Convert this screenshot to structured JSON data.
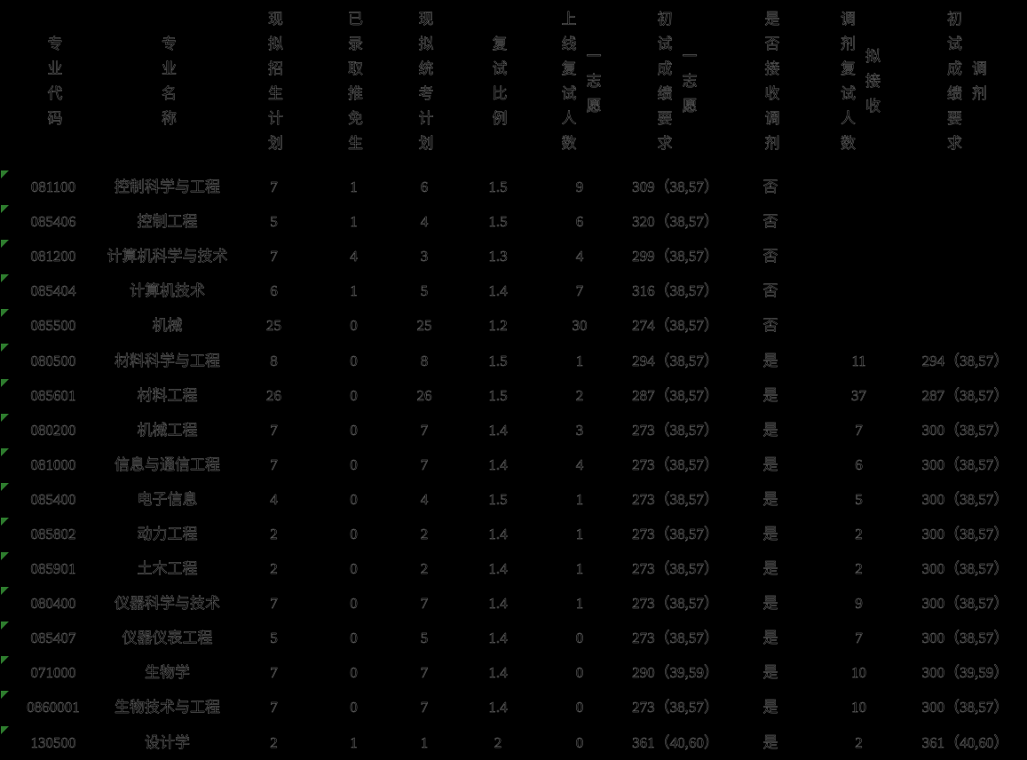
{
  "colors": {
    "background": "#000000",
    "text": "#000000",
    "flag_green": "#2e7d2e"
  },
  "table": {
    "columns": [
      {
        "id": "code",
        "label": "专业代码",
        "sub": ""
      },
      {
        "id": "name",
        "label": "专业名称",
        "sub": ""
      },
      {
        "id": "plan",
        "label": "现拟招生计划",
        "sub": ""
      },
      {
        "id": "tuimian",
        "label": "已录取推免生",
        "sub": ""
      },
      {
        "id": "tongkao",
        "label": "现拟统考计划",
        "sub": ""
      },
      {
        "id": "ratio",
        "label": "复试比例",
        "sub": ""
      },
      {
        "id": "first_online",
        "label": "上线复试人数",
        "sub": "一志愿"
      },
      {
        "id": "first_score",
        "label": "初试成绩要求",
        "sub": "一志愿"
      },
      {
        "id": "accept",
        "label": "是否接收调剂",
        "sub": ""
      },
      {
        "id": "tiaoji_num",
        "label": "调剂复试人数",
        "sub": "拟接收"
      },
      {
        "id": "tiaoji_score",
        "label": "初试成绩要求",
        "sub": "调剂"
      }
    ],
    "rows": [
      {
        "code": "081100",
        "name": "控制科学与工程",
        "plan": "7",
        "tuimian": "1",
        "tongkao": "6",
        "ratio": "1.5",
        "first_online": "9",
        "first_score": "309（38,57）",
        "accept": "否",
        "tiaoji_num": "",
        "tiaoji_score": ""
      },
      {
        "code": "085406",
        "name": "控制工程",
        "plan": "5",
        "tuimian": "1",
        "tongkao": "4",
        "ratio": "1.5",
        "first_online": "6",
        "first_score": "320（38,57）",
        "accept": "否",
        "tiaoji_num": "",
        "tiaoji_score": ""
      },
      {
        "code": "081200",
        "name": "计算机科学与技术",
        "plan": "7",
        "tuimian": "4",
        "tongkao": "3",
        "ratio": "1.3",
        "first_online": "4",
        "first_score": "299（38,57）",
        "accept": "否",
        "tiaoji_num": "",
        "tiaoji_score": ""
      },
      {
        "code": "085404",
        "name": "计算机技术",
        "plan": "6",
        "tuimian": "1",
        "tongkao": "5",
        "ratio": "1.4",
        "first_online": "7",
        "first_score": "316（38,57）",
        "accept": "否",
        "tiaoji_num": "",
        "tiaoji_score": ""
      },
      {
        "code": "085500",
        "name": "机械",
        "plan": "25",
        "tuimian": "0",
        "tongkao": "25",
        "ratio": "1.2",
        "first_online": "30",
        "first_score": "274（38,57）",
        "accept": "否",
        "tiaoji_num": "",
        "tiaoji_score": ""
      },
      {
        "code": "080500",
        "name": "材料科学与工程",
        "plan": "8",
        "tuimian": "0",
        "tongkao": "8",
        "ratio": "1.5",
        "first_online": "1",
        "first_score": "294（38,57）",
        "accept": "是",
        "tiaoji_num": "11",
        "tiaoji_score": "294（38,57）"
      },
      {
        "code": "085601",
        "name": "材料工程",
        "plan": "26",
        "tuimian": "0",
        "tongkao": "26",
        "ratio": "1.5",
        "first_online": "2",
        "first_score": "287（38,57）",
        "accept": "是",
        "tiaoji_num": "37",
        "tiaoji_score": "287（38,57）"
      },
      {
        "code": "080200",
        "name": "机械工程",
        "plan": "7",
        "tuimian": "0",
        "tongkao": "7",
        "ratio": "1.4",
        "first_online": "3",
        "first_score": "273（38,57）",
        "accept": "是",
        "tiaoji_num": "7",
        "tiaoji_score": "300（38,57）"
      },
      {
        "code": "081000",
        "name": "信息与通信工程",
        "plan": "7",
        "tuimian": "0",
        "tongkao": "7",
        "ratio": "1.4",
        "first_online": "4",
        "first_score": "273（38,57）",
        "accept": "是",
        "tiaoji_num": "6",
        "tiaoji_score": "300（38,57）"
      },
      {
        "code": "085400",
        "name": "电子信息",
        "plan": "4",
        "tuimian": "0",
        "tongkao": "4",
        "ratio": "1.5",
        "first_online": "1",
        "first_score": "273（38,57）",
        "accept": "是",
        "tiaoji_num": "5",
        "tiaoji_score": "300（38,57）"
      },
      {
        "code": "085802",
        "name": "动力工程",
        "plan": "2",
        "tuimian": "0",
        "tongkao": "2",
        "ratio": "1.4",
        "first_online": "1",
        "first_score": "273（38,57）",
        "accept": "是",
        "tiaoji_num": "2",
        "tiaoji_score": "300（38,57）"
      },
      {
        "code": "085901",
        "name": "土木工程",
        "plan": "2",
        "tuimian": "0",
        "tongkao": "2",
        "ratio": "1.4",
        "first_online": "1",
        "first_score": "273（38,57）",
        "accept": "是",
        "tiaoji_num": "2",
        "tiaoji_score": "300（38,57）"
      },
      {
        "code": "080400",
        "name": "仪器科学与技术",
        "plan": "7",
        "tuimian": "0",
        "tongkao": "7",
        "ratio": "1.4",
        "first_online": "1",
        "first_score": "273（38,57）",
        "accept": "是",
        "tiaoji_num": "9",
        "tiaoji_score": "300（38,57）"
      },
      {
        "code": "085407",
        "name": "仪器仪表工程",
        "plan": "5",
        "tuimian": "0",
        "tongkao": "5",
        "ratio": "1.4",
        "first_online": "0",
        "first_score": "273（38,57）",
        "accept": "是",
        "tiaoji_num": "7",
        "tiaoji_score": "300（38,57）"
      },
      {
        "code": "071000",
        "name": "生物学",
        "plan": "7",
        "tuimian": "0",
        "tongkao": "7",
        "ratio": "1.4",
        "first_online": "0",
        "first_score": "290（39,59）",
        "accept": "是",
        "tiaoji_num": "10",
        "tiaoji_score": "300（39,59）"
      },
      {
        "code": "0860001",
        "name": "生物技术与工程",
        "plan": "7",
        "tuimian": "0",
        "tongkao": "7",
        "ratio": "1.4",
        "first_online": "0",
        "first_score": "273（38,57）",
        "accept": "是",
        "tiaoji_num": "10",
        "tiaoji_score": "300（38,57）"
      },
      {
        "code": "130500",
        "name": "设计学",
        "plan": "2",
        "tuimian": "1",
        "tongkao": "1",
        "ratio": "2",
        "first_online": "0",
        "first_score": "361（40,60）",
        "accept": "是",
        "tiaoji_num": "2",
        "tiaoji_score": "361（40,60）"
      }
    ]
  }
}
